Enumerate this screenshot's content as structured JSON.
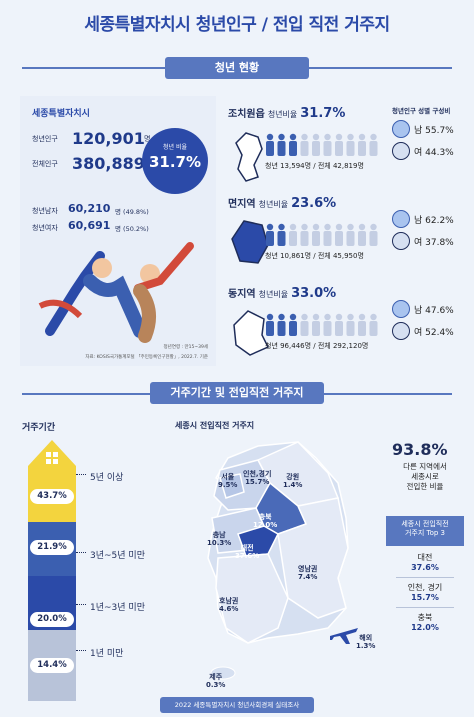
{
  "page_title": "세종특별자치시 청년인구 / 전입 직전 거주지",
  "section1": {
    "ribbon": "청년 현황",
    "sejong": {
      "name": "세종특별자치시",
      "youth_label": "청년인구",
      "youth_value": "120,901",
      "youth_unit": "명",
      "total_label": "전체인구",
      "total_value": "380,889",
      "total_unit": "명",
      "ratio_label": "청년 비율",
      "ratio_value": "31.7%",
      "male_label": "청년남자",
      "male_value": "60,210",
      "male_pct": "명 (49.8%)",
      "female_label": "청년여자",
      "female_value": "60,691",
      "female_pct": "명 (50.2%)",
      "age_note": "청년연령 : 만15~39세",
      "source": "자료: KOSIS국가통계포털 「주민등록인구현황」, 2022.7. 기준"
    },
    "gender_header": "청년인구 성별 구성비",
    "regions": [
      {
        "name": "조치원읍",
        "ratio_label": "청년비율",
        "ratio": "31.7%",
        "ratio_fill": 0.317,
        "detail": "청년 13,594명 / 전체 42,819명",
        "male": "남 55.7%",
        "female": "여 44.3%"
      },
      {
        "name": "면지역",
        "ratio_label": "청년비율",
        "ratio": "23.6%",
        "ratio_fill": 0.236,
        "detail": "청년 10,861명 / 전체 45,950명",
        "male": "남 62.2%",
        "female": "여 37.8%"
      },
      {
        "name": "동지역",
        "ratio_label": "청년비율",
        "ratio": "33.0%",
        "ratio_fill": 0.33,
        "detail": "청년 96,446명 / 전체 292,120명",
        "male": "남 47.6%",
        "female": "여 52.4%"
      }
    ]
  },
  "section2": {
    "ribbon": "거주기간 및 전입직전 거주지",
    "duration_title": "거주기간",
    "duration": [
      {
        "pct": "43.7%",
        "label": "5년 이상"
      },
      {
        "pct": "21.9%",
        "label": "3년~5년 미만"
      },
      {
        "pct": "20.0%",
        "label": "1년~3년 미만"
      },
      {
        "pct": "14.4%",
        "label": "1년 미만"
      }
    ],
    "map_title": "세종시 전입직전 거주지",
    "map_regions": [
      {
        "name": "서울",
        "pct": "9.5%"
      },
      {
        "name": "인천,경기",
        "pct": "15.7%"
      },
      {
        "name": "강원",
        "pct": "1.4%"
      },
      {
        "name": "충북",
        "pct": "12.0%"
      },
      {
        "name": "충남",
        "pct": "10.3%"
      },
      {
        "name": "대전",
        "pct": "37.6%"
      },
      {
        "name": "영남권",
        "pct": "7.4%"
      },
      {
        "name": "호남권",
        "pct": "4.6%"
      },
      {
        "name": "제주",
        "pct": "0.3%"
      },
      {
        "name": "해외",
        "pct": "1.3%"
      }
    ],
    "big_pct": "93.8%",
    "big_desc": [
      "다른 지역에서",
      "세종시로",
      "전입한 비율"
    ],
    "top3_title": [
      "세종시 전입직전",
      "거주지 Top 3"
    ],
    "top3": [
      {
        "name": "대전",
        "pct": "37.6%"
      },
      {
        "name": "인천, 경기",
        "pct": "15.7%"
      },
      {
        "name": "충북",
        "pct": "12.0%"
      }
    ]
  },
  "footer": "2022 세종특별자치시 청년사회경제 실태조사",
  "colors": {
    "navy": "#1f3a8a",
    "ribbon": "#5877bf",
    "yellow": "#f3d43e",
    "blue_mid": "#3b5fb0",
    "grey_bar": "#b8c3d9"
  }
}
